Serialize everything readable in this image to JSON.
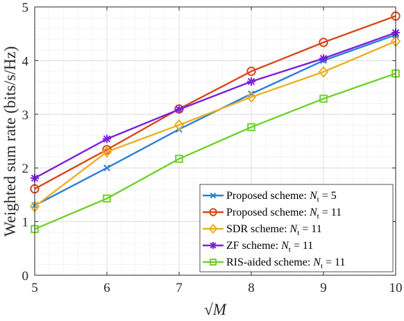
{
  "chart_data": {
    "type": "line",
    "title": "",
    "xlabel": "√M",
    "ylabel": "Weighted sum rate (bits/s/Hz)",
    "xlim": [
      5,
      10
    ],
    "ylim": [
      0,
      5
    ],
    "x": [
      5,
      6,
      7,
      8,
      9,
      10
    ],
    "xticks": [
      "5",
      "6",
      "7",
      "8",
      "9",
      "10"
    ],
    "yticks": [
      "0",
      "1",
      "2",
      "3",
      "4",
      "5"
    ],
    "grid": true,
    "legend_position": "bottom-right",
    "series": [
      {
        "name": "Proposed scheme: N_t = 5",
        "legend_prefix": "Proposed scheme: ",
        "legend_var": "N",
        "legend_sub": "t",
        "legend_suffix": " = 5",
        "color": "#2b7fd9",
        "marker": "x",
        "values": [
          1.3,
          2.0,
          2.72,
          3.38,
          4.0,
          4.48
        ]
      },
      {
        "name": "Proposed scheme: N_t = 11",
        "legend_prefix": "Proposed scheme: ",
        "legend_var": "N",
        "legend_sub": "t",
        "legend_suffix": " = 11",
        "color": "#d9461a",
        "marker": "circle",
        "values": [
          1.61,
          2.34,
          3.1,
          3.8,
          4.34,
          4.83
        ]
      },
      {
        "name": "SDR scheme: N_t = 11",
        "legend_prefix": "SDR scheme: ",
        "legend_var": "N",
        "legend_sub": "t",
        "legend_suffix": " = 11",
        "color": "#ebb020",
        "marker": "diamond",
        "values": [
          1.28,
          2.3,
          2.8,
          3.32,
          3.79,
          4.36
        ]
      },
      {
        "name": "ZF scheme: N_t = 11",
        "legend_prefix": "ZF scheme: ",
        "legend_var": "N",
        "legend_sub": "t",
        "legend_suffix": " = 11",
        "color": "#7b1fe0",
        "marker": "asterisk",
        "values": [
          1.81,
          2.54,
          3.09,
          3.61,
          4.04,
          4.52
        ]
      },
      {
        "name": "RIS-aided scheme: N_t = 11",
        "legend_prefix": "RIS-aided scheme: ",
        "legend_var": "N",
        "legend_sub": "t",
        "legend_suffix": " = 11",
        "color": "#6fd12b",
        "marker": "square",
        "values": [
          0.86,
          1.43,
          2.17,
          2.76,
          3.29,
          3.76
        ]
      }
    ]
  }
}
